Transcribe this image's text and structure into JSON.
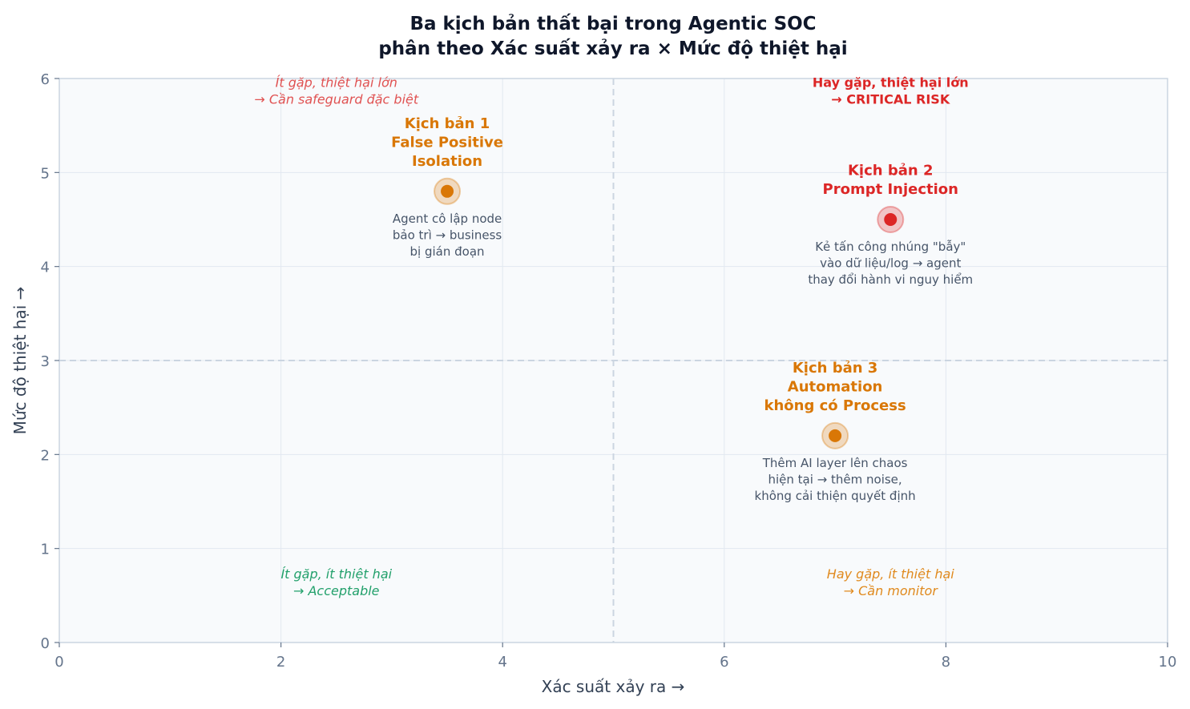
{
  "chart_data": {
    "type": "scatter",
    "title": [
      "Ba kịch bản thất bại trong Agentic SOC",
      "phân theo Xác suất xảy ra × Mức độ thiệt hại"
    ],
    "xlabel": "Xác suất xảy ra →",
    "ylabel": "Mức độ thiệt hại →",
    "xlim": [
      0,
      10
    ],
    "ylim": [
      0,
      6
    ],
    "xticks": [
      0,
      2,
      4,
      6,
      8,
      10
    ],
    "yticks": [
      0,
      1,
      2,
      3,
      4,
      5,
      6
    ],
    "grid": true,
    "threshold_x": 5,
    "threshold_y": 3,
    "points": [
      {
        "x": 3.5,
        "y": 4.8,
        "color": "#d97706",
        "title": [
          "Kịch bản 1",
          "False Positive",
          "Isolation"
        ],
        "desc": [
          "Agent cô lập node",
          "bảo trì → business",
          "bị gián đoạn"
        ]
      },
      {
        "x": 7.5,
        "y": 4.5,
        "color": "#dc2626",
        "title": [
          "Kịch bản 2",
          "Prompt Injection"
        ],
        "desc": [
          "Kẻ tấn công nhúng \"bẫy\"",
          "vào dữ liệu/log → agent",
          "thay đổi hành vi nguy hiểm"
        ]
      },
      {
        "x": 7.0,
        "y": 2.2,
        "color": "#d97706",
        "title": [
          "Kịch bản 3",
          "Automation",
          "không có Process"
        ],
        "desc": [
          "Thêm AI layer lên chaos",
          "hiện tại → thêm noise,",
          "không cải thiện quyết định"
        ]
      }
    ],
    "quadrant_labels": [
      {
        "id": "top-left",
        "lines": [
          "Ít gặp, thiệt hại lớn",
          "→ Cần safeguard đặc biệt"
        ],
        "color": "#e05252",
        "style": "italic"
      },
      {
        "id": "top-right",
        "lines": [
          "Hay gặp, thiệt hại lớn",
          "→ CRITICAL RISK"
        ],
        "color": "#dc2626",
        "style": "bold"
      },
      {
        "id": "bottom-left",
        "lines": [
          "Ít gặp, ít thiệt hại",
          "→ Acceptable"
        ],
        "color": "#22a06b",
        "style": "italic"
      },
      {
        "id": "bottom-right",
        "lines": [
          "Hay gặp, ít thiệt hại",
          "→ Cần monitor"
        ],
        "color": "#e08a1e",
        "style": "italic"
      }
    ]
  }
}
